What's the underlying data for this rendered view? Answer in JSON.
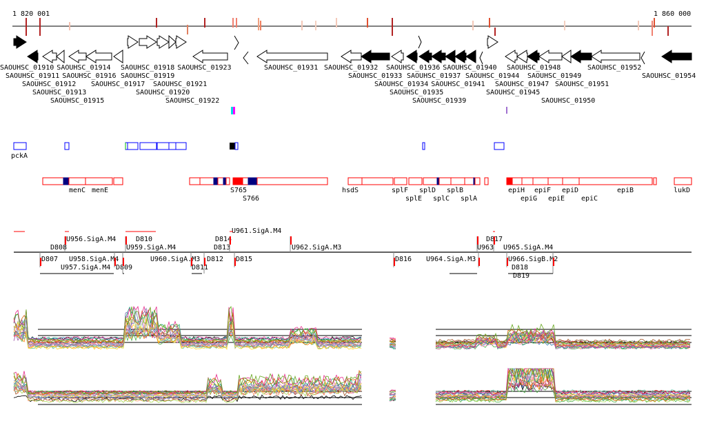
{
  "ruler": {
    "start_label": "1 820 001",
    "end_label": "1 860 000"
  },
  "genes": [
    {
      "name": "SAOUHSC_01910"
    },
    {
      "name": "SAOUHSC_01911"
    },
    {
      "name": "SAOUHSC_01913"
    },
    {
      "name": "SAOUHSC_01914"
    },
    {
      "name": "SAOUHSC_01912"
    },
    {
      "name": "SAOUHSC_01915"
    },
    {
      "name": "SAOUHSC_01916"
    },
    {
      "name": "SAOUHSC_01917"
    },
    {
      "name": "SAOUHSC_01918"
    },
    {
      "name": "SAOUHSC_01919"
    },
    {
      "name": "SAOUHSC_01920"
    },
    {
      "name": "SAOUHSC_01921"
    },
    {
      "name": "SAOUHSC_01922"
    },
    {
      "name": "SAOUHSC_01923"
    },
    {
      "name": "SAOUHSC_01931"
    },
    {
      "name": "SAOUHSC_01932"
    },
    {
      "name": "SAOUHSC_01933"
    },
    {
      "name": "SAOUHSC_01934"
    },
    {
      "name": "SAOUHSC_01935"
    },
    {
      "name": "SAOUHSC_01936"
    },
    {
      "name": "SAOUHSC_01937"
    },
    {
      "name": "SAOUHSC_01939"
    },
    {
      "name": "SAOUHSC_01941"
    },
    {
      "name": "SAOUHSC_01940"
    },
    {
      "name": "SAOUHSC_01944"
    },
    {
      "name": "SAOUHSC_01945"
    },
    {
      "name": "SAOUHSC_01947"
    },
    {
      "name": "SAOUHSC_01948"
    },
    {
      "name": "SAOUHSC_01949"
    },
    {
      "name": "SAOUHSC_01950"
    },
    {
      "name": "SAOUHSC_01951"
    },
    {
      "name": "SAOUHSC_01952"
    },
    {
      "name": "SAOUHSC_01954"
    }
  ],
  "blue_feature_label": "pckA",
  "red_feature_labels": [
    "menC",
    "menE",
    "S765",
    "S766",
    "hsdS",
    "splF",
    "splE",
    "splD",
    "splC",
    "splB",
    "splA",
    "epiH",
    "epiG",
    "epiF",
    "epiE",
    "epiD",
    "epiC",
    "epiB",
    "lukD"
  ],
  "transcripts": [
    "U956.SigA.M4",
    "D808",
    "U959.SigA.M4",
    "D810",
    "D813",
    "D814",
    "U961.SigA.M4",
    "U962.SigA.M3",
    "U963",
    "U965.SigA.M4",
    "D817",
    "D807",
    "U957.SigA.M4",
    "U958.SigA.M4",
    "D809",
    "U960.SigA.M3",
    "D811",
    "D812",
    "D815",
    "D816",
    "U964.SigA.M3",
    "D818",
    "D819",
    "U966.SigB.M2"
  ],
  "colors": {
    "gene_fill": "#000000",
    "feature_red": "#ff0000",
    "feature_navy": "#000080",
    "feature_blue": "#0000ff",
    "tick_dark": "#b22222"
  }
}
